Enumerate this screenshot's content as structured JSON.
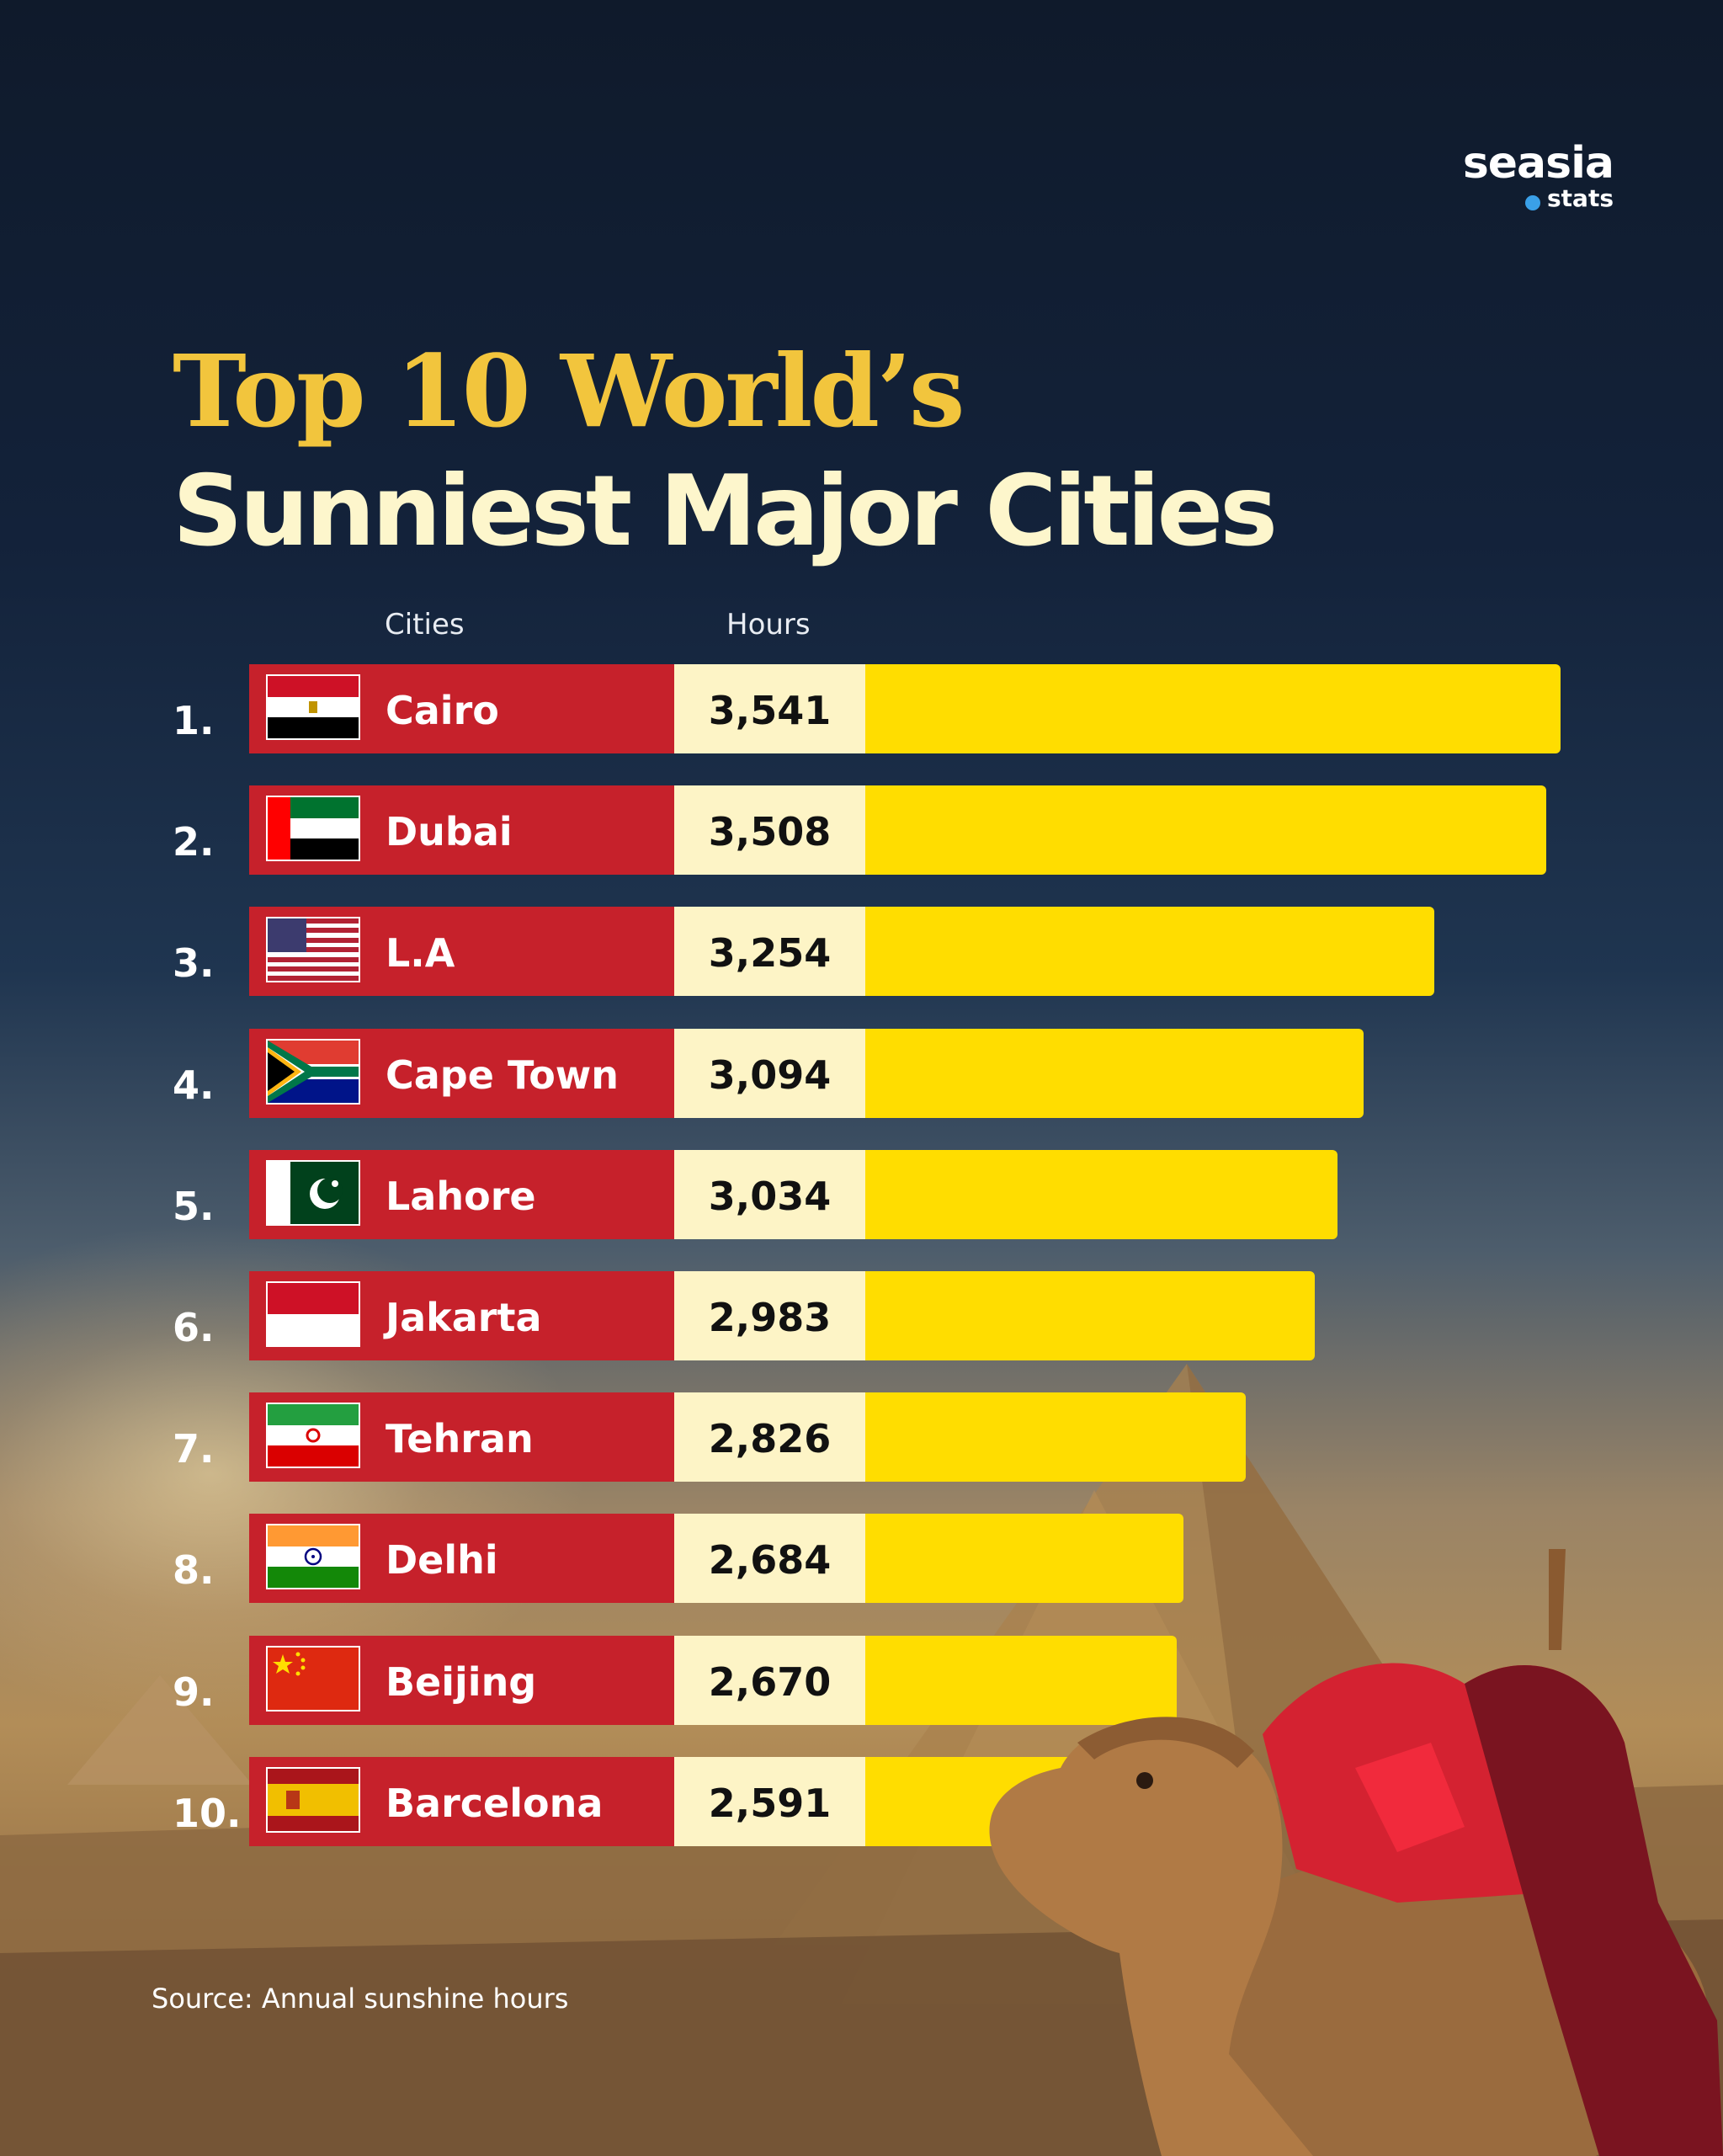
{
  "brand": {
    "name": "seasia",
    "sub": "stats"
  },
  "title": {
    "line1": "Top 10 World’s",
    "line2": "Sunniest Major Cities"
  },
  "columns": {
    "cities": "Cities",
    "hours": "Hours"
  },
  "source": "Source: Annual sunshine hours",
  "colors": {
    "city_box": "#c6212b",
    "value_box": "#fdf4c6",
    "bar": "#ffdd00",
    "title_accent": "#f2c53d",
    "title_main": "#fdf6cc"
  },
  "chart_data": {
    "type": "bar",
    "orientation": "horizontal",
    "title": "Top 10 World’s Sunniest Major Cities",
    "xlabel": "Hours",
    "ylabel": "Cities",
    "categories": [
      "Cairo",
      "Dubai",
      "L.A",
      "Cape Town",
      "Lahore",
      "Jakarta",
      "Tehran",
      "Delhi",
      "Beijing",
      "Barcelona"
    ],
    "values": [
      3541,
      3508,
      3254,
      3094,
      3034,
      2983,
      2826,
      2684,
      2670,
      2591
    ],
    "value_labels": [
      "3,541",
      "3,508",
      "3,254",
      "3,094",
      "3,034",
      "2,983",
      "2,826",
      "2,684",
      "2,670",
      "2,591"
    ],
    "ranks": [
      "1.",
      "2.",
      "3.",
      "4.",
      "5.",
      "6.",
      "7.",
      "8.",
      "9.",
      "10."
    ],
    "flags": [
      "egypt-flag",
      "uae-flag",
      "usa-flag",
      "south-africa-flag",
      "pakistan-flag",
      "indonesia-flag",
      "iran-flag",
      "india-flag",
      "china-flag",
      "spain-flag"
    ],
    "grid": false,
    "legend": "none"
  }
}
